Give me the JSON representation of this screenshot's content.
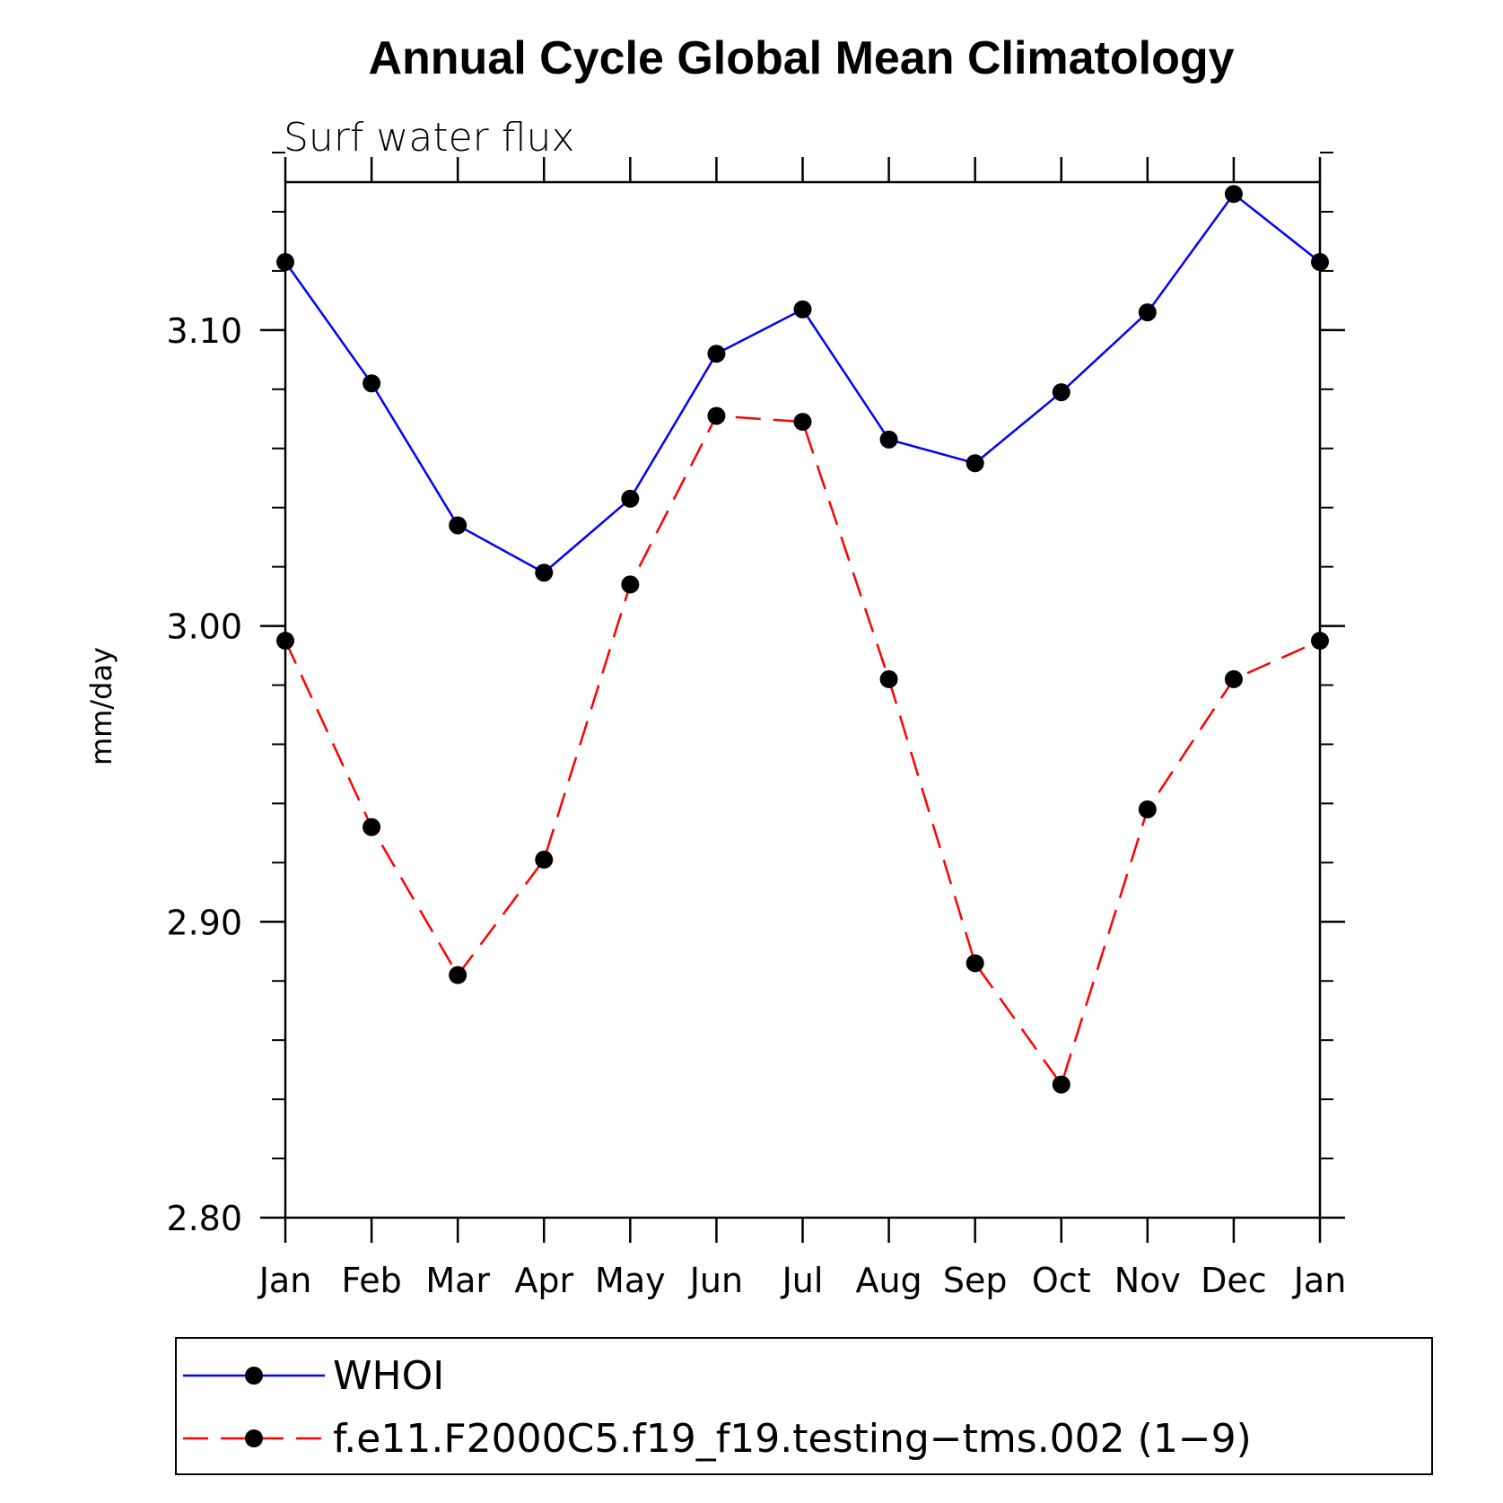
{
  "chart_data": {
    "type": "line",
    "title": "Annual Cycle Global Mean Climatology",
    "subtitle": "Surf water flux",
    "xlabel": "",
    "ylabel": "mm/day",
    "categories": [
      "Jan",
      "Feb",
      "Mar",
      "Apr",
      "May",
      "Jun",
      "Jul",
      "Aug",
      "Sep",
      "Oct",
      "Nov",
      "Dec",
      "Jan"
    ],
    "ylim": [
      2.8,
      3.15
    ],
    "yticks": [
      "3.10",
      "3.00",
      "2.90",
      "2.80"
    ],
    "ytick_values": [
      3.1,
      3.0,
      2.9,
      2.8
    ],
    "yminor_step": 0.02,
    "legend_position": "bottom",
    "series": [
      {
        "name": "WHOI",
        "color": "#0000ff",
        "style": "solid",
        "marker": "filled-circle",
        "values": [
          3.123,
          3.082,
          3.034,
          3.018,
          3.043,
          3.092,
          3.107,
          3.063,
          3.055,
          3.079,
          3.106,
          3.146,
          3.123
        ]
      },
      {
        "name": "f.e11.F2000C5.f19_f19.testing−tms.002 (1−9)",
        "color": "#ff0000",
        "style": "dashed",
        "marker": "filled-circle",
        "values": [
          2.995,
          2.932,
          2.882,
          2.921,
          3.014,
          3.071,
          3.069,
          2.982,
          2.886,
          2.845,
          2.938,
          2.982,
          2.995
        ]
      }
    ]
  }
}
